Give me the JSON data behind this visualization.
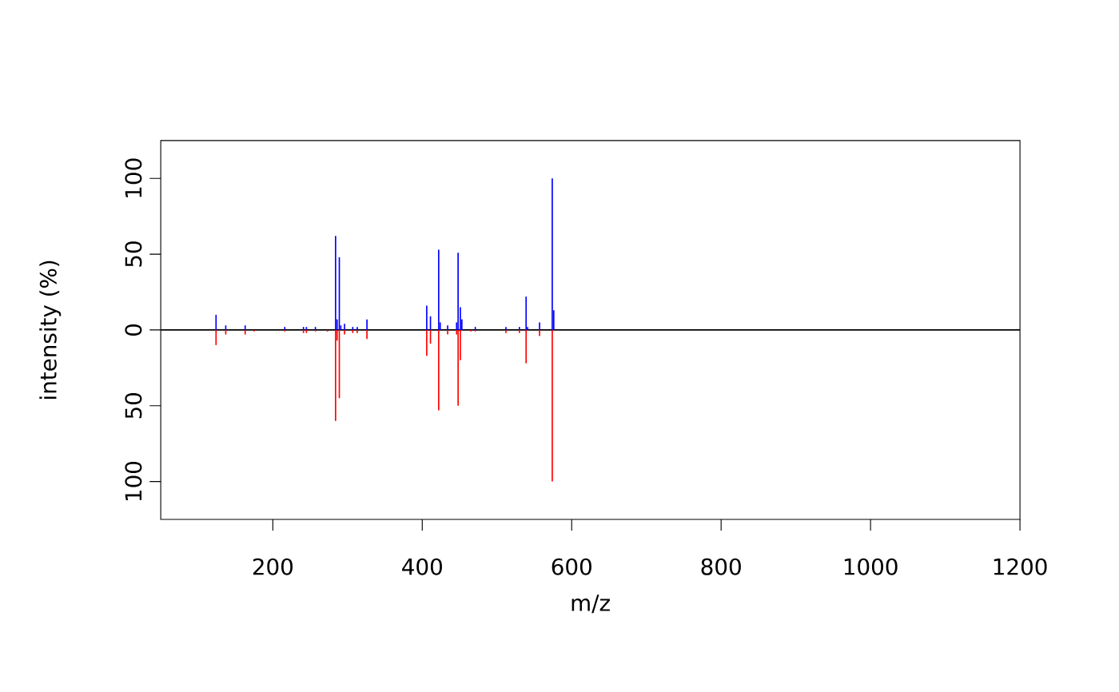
{
  "chart_data": {
    "type": "bar",
    "xlabel": "m/z",
    "ylabel": "intensity (%)",
    "x": [
      124,
      137,
      163,
      175,
      216,
      241,
      245,
      257,
      273,
      284,
      286,
      289,
      291,
      296,
      307,
      313,
      326,
      406,
      411,
      422,
      424,
      434,
      446,
      448,
      451,
      453,
      465,
      471,
      512,
      530,
      539,
      541,
      557,
      574,
      576
    ],
    "series": [
      {
        "color": "#0000ff",
        "values": [
          10,
          3,
          3,
          null,
          2,
          2,
          2,
          2,
          null,
          62,
          7,
          48,
          3,
          4,
          2,
          2,
          7,
          16,
          9,
          53,
          5,
          3,
          5,
          51,
          15,
          7,
          null,
          2,
          2,
          2,
          22,
          2,
          5,
          100,
          13
        ]
      },
      {
        "color": "#ff0000",
        "values": [
          -10,
          -3,
          -3,
          -1,
          -1,
          -2,
          -2,
          -1,
          -1,
          -60,
          -7,
          -45,
          null,
          -3,
          -2,
          -2,
          -6,
          -17,
          -9,
          -53,
          null,
          -3,
          -3,
          -50,
          -20,
          null,
          -1,
          -1,
          -2,
          -2,
          -22,
          null,
          -4,
          -100,
          null
        ]
      }
    ],
    "xlim": [
      50,
      1200
    ],
    "ylim": [
      -125,
      125
    ],
    "xticks": [
      200,
      400,
      600,
      800,
      1000,
      1200
    ],
    "yticks": [
      {
        "value": -100,
        "label": "100"
      },
      {
        "value": -50,
        "label": "50"
      },
      0,
      50,
      100
    ],
    "ref_lines": [
      {
        "axis": "y",
        "value": 0,
        "color": "#000000"
      }
    ],
    "grid": false
  }
}
